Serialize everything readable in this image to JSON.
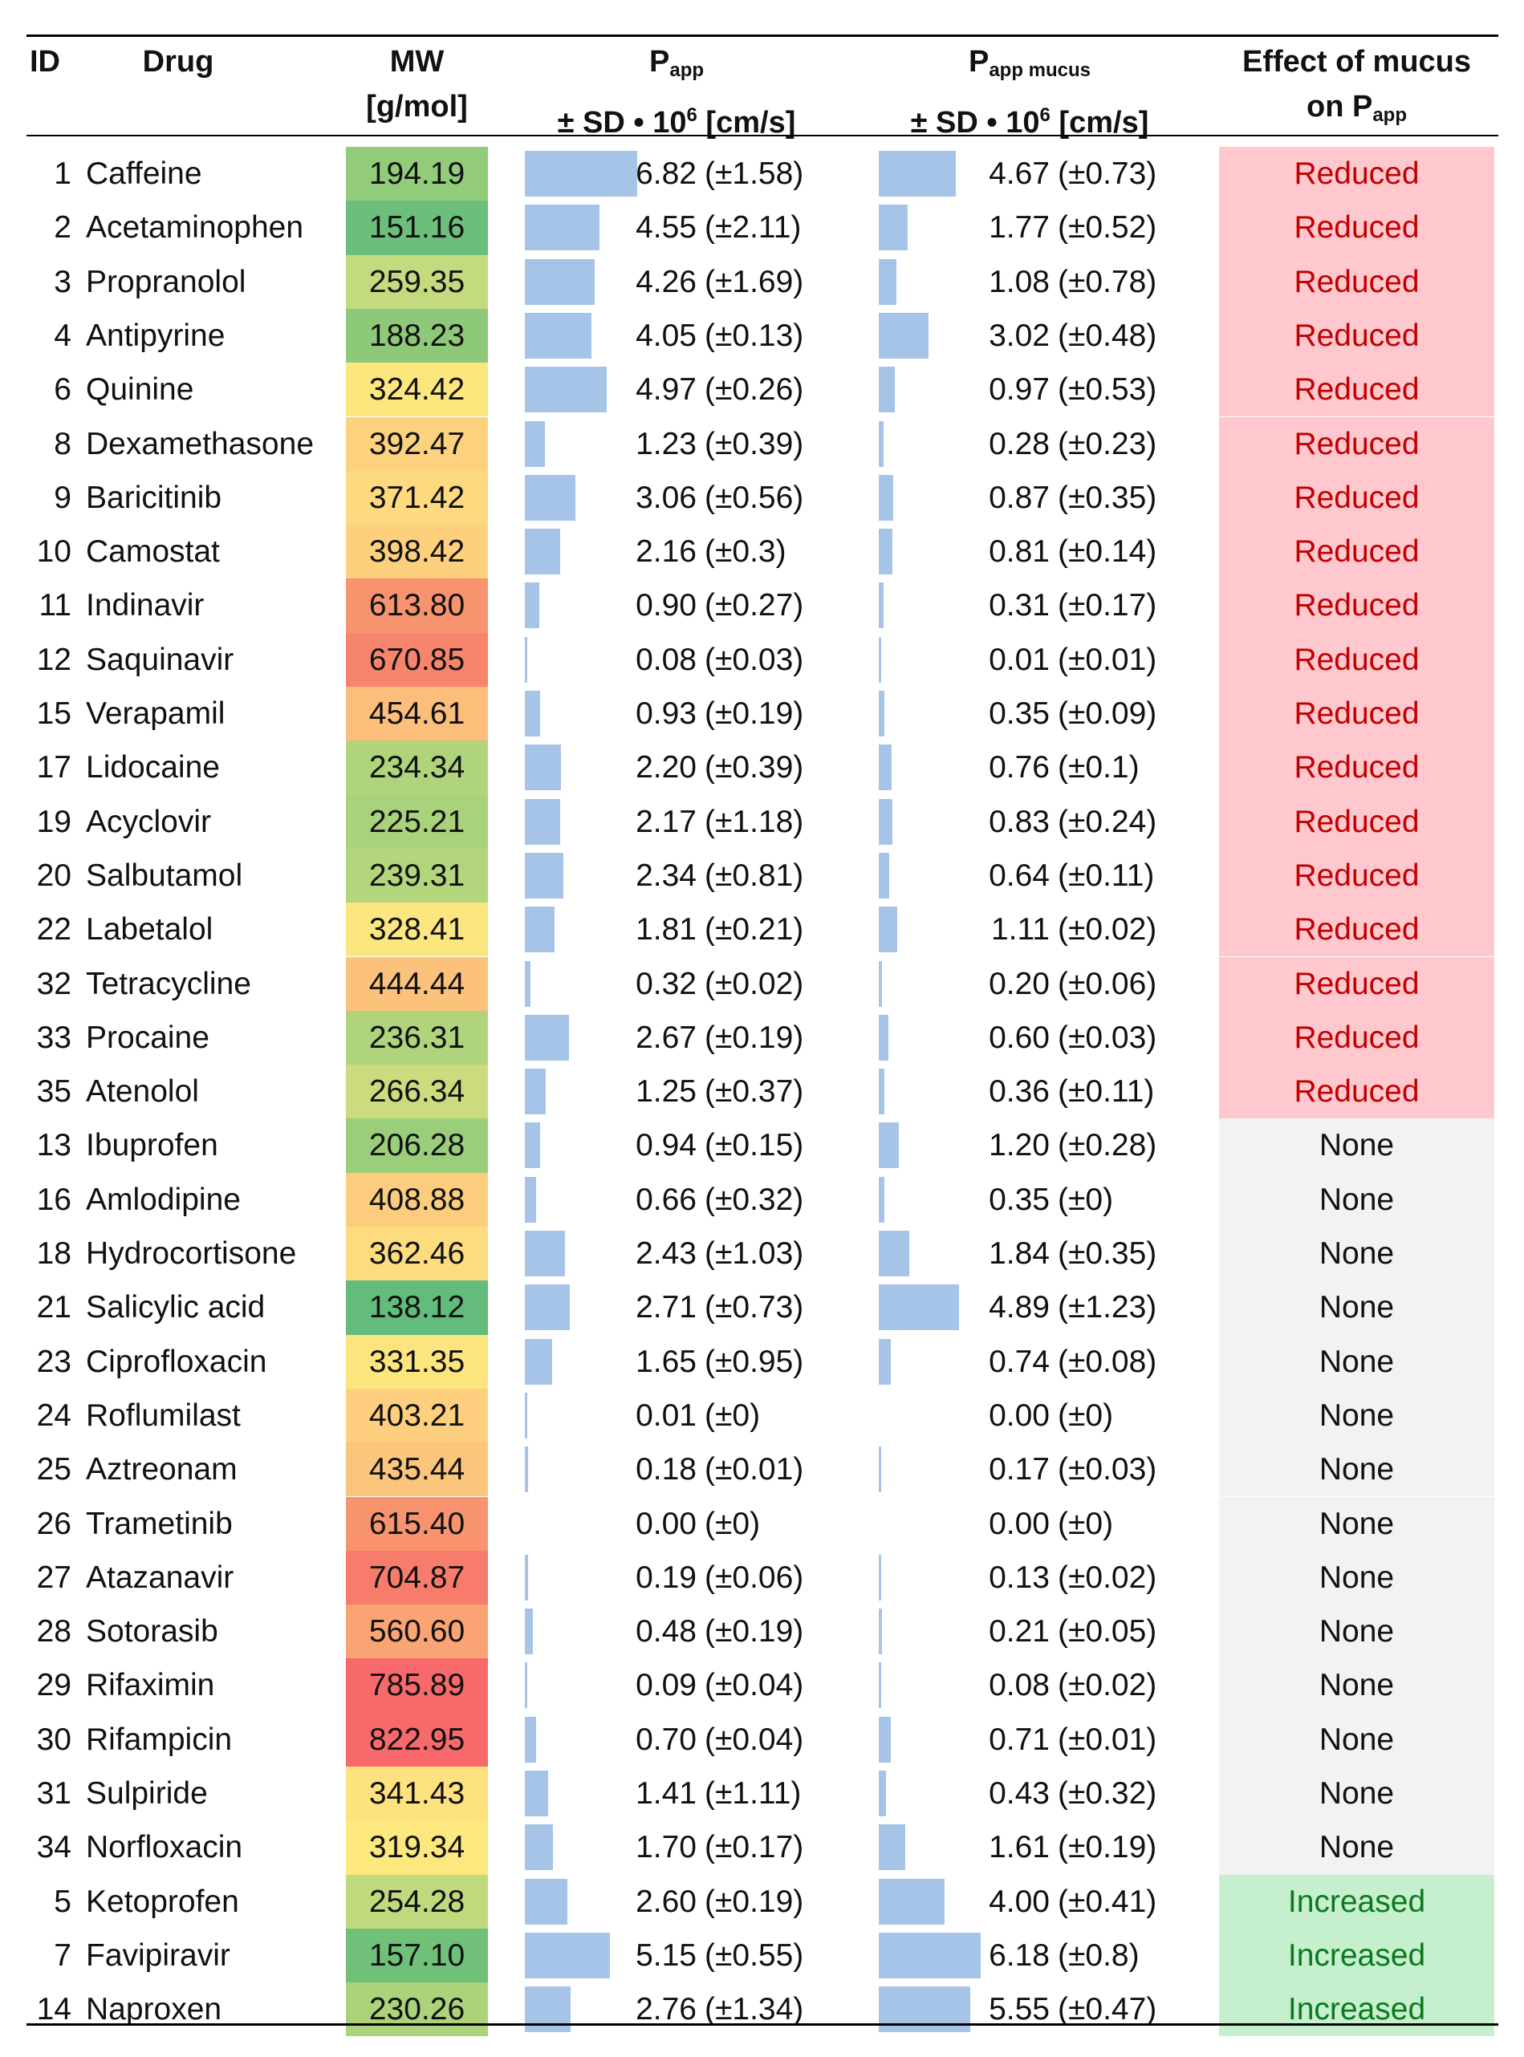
{
  "headers": {
    "id": "ID",
    "drug": "Drug",
    "mw_line1": "MW",
    "mw_line2": "[g/mol]",
    "papp_main": "P",
    "papp_sub": "app",
    "papp_line2_pre": "± SD • 10",
    "papp_sup": "6",
    "papp_line2_post": " [cm/s]",
    "pappm_main": "P",
    "pappm_sub": "app mucus",
    "pappm_line2_pre": "± SD • 10",
    "pappm_sup": "6",
    "pappm_line2_post": " [cm/s]",
    "effect_line1": "Effect of mucus",
    "effect_line2_pre": "on P",
    "effect_sub": "app"
  },
  "colors": {
    "bar": "#a6c4e8",
    "reduced_bg": "#ffc7ce",
    "reduced_text": "#c00000",
    "none_bg": "#f2f2f2",
    "none_text": "#111111",
    "increased_bg": "#c6efce",
    "increased_text": "#0b7a1f"
  },
  "rows": [
    {
      "id": "1",
      "drug": "Caffeine",
      "mw": "194.19",
      "mw_color": "#92cc7a",
      "papp": "6.82",
      "papp_sd": "(±1.58)",
      "papp_v": 6.82,
      "pm": "4.67",
      "pm_sd": "(±0.73)",
      "pm_v": 4.67,
      "effect": "Reduced"
    },
    {
      "id": "2",
      "drug": "Acetaminophen",
      "mw": "151.16",
      "mw_color": "#6cbf7a",
      "papp": "4.55",
      "papp_sd": "(±2.11)",
      "papp_v": 4.55,
      "pm": "1.77",
      "pm_sd": "(±0.52)",
      "pm_v": 1.77,
      "effect": "Reduced"
    },
    {
      "id": "3",
      "drug": "Propranolol",
      "mw": "259.35",
      "mw_color": "#c4da7e",
      "papp": "4.26",
      "papp_sd": "(±1.69)",
      "papp_v": 4.26,
      "pm": "1.08",
      "pm_sd": "(±0.78)",
      "pm_v": 1.08,
      "effect": "Reduced"
    },
    {
      "id": "4",
      "drug": "Antipyrine",
      "mw": "188.23",
      "mw_color": "#8ec97a",
      "papp": "4.05",
      "papp_sd": "(±0.13)",
      "papp_v": 4.05,
      "pm": "3.02",
      "pm_sd": "(±0.48)",
      "pm_v": 3.02,
      "effect": "Reduced"
    },
    {
      "id": "6",
      "drug": "Quinine",
      "mw": "324.42",
      "mw_color": "#fce77f",
      "papp": "4.97",
      "papp_sd": "(±0.26)",
      "papp_v": 4.97,
      "pm": "0.97",
      "pm_sd": "(±0.53)",
      "pm_v": 0.97,
      "effect": "Reduced"
    },
    {
      "id": "8",
      "drug": "Dexamethasone",
      "mw": "392.47",
      "mw_color": "#fdd27e",
      "papp": "1.23",
      "papp_sd": "(±0.39)",
      "papp_v": 1.23,
      "pm": "0.28",
      "pm_sd": "(±0.23)",
      "pm_v": 0.28,
      "effect": "Reduced"
    },
    {
      "id": "9",
      "drug": "Baricitinib",
      "mw": "371.42",
      "mw_color": "#fdd97f",
      "papp": "3.06",
      "papp_sd": "(±0.56)",
      "papp_v": 3.06,
      "pm": "0.87",
      "pm_sd": "(±0.35)",
      "pm_v": 0.87,
      "effect": "Reduced"
    },
    {
      "id": "10",
      "drug": "Camostat",
      "mw": "398.42",
      "mw_color": "#fdd07e",
      "papp": "2.16",
      "papp_sd": "(±0.3)",
      "papp_v": 2.16,
      "pm": "0.81",
      "pm_sd": "(±0.14)",
      "pm_v": 0.81,
      "effect": "Reduced"
    },
    {
      "id": "11",
      "drug": "Indinavir",
      "mw": "613.80",
      "mw_color": "#f8936f",
      "papp": "0.90",
      "papp_sd": "(±0.27)",
      "papp_v": 0.9,
      "pm": "0.31",
      "pm_sd": "(±0.17)",
      "pm_v": 0.31,
      "effect": "Reduced"
    },
    {
      "id": "12",
      "drug": "Saquinavir",
      "mw": "670.85",
      "mw_color": "#f7856d",
      "papp": "0.08",
      "papp_sd": "(±0.03)",
      "papp_v": 0.08,
      "pm": "0.01",
      "pm_sd": "(±0.01)",
      "pm_v": 0.01,
      "effect": "Reduced"
    },
    {
      "id": "15",
      "drug": "Verapamil",
      "mw": "454.61",
      "mw_color": "#fcbf7b",
      "papp": "0.93",
      "papp_sd": "(±0.19)",
      "papp_v": 0.93,
      "pm": "0.35",
      "pm_sd": "(±0.09)",
      "pm_v": 0.35,
      "effect": "Reduced"
    },
    {
      "id": "17",
      "drug": "Lidocaine",
      "mw": "234.34",
      "mw_color": "#afd47c",
      "papp": "2.20",
      "papp_sd": "(±0.39)",
      "papp_v": 2.2,
      "pm": "0.76",
      "pm_sd": "(±0.1)",
      "pm_v": 0.76,
      "effect": "Reduced"
    },
    {
      "id": "19",
      "drug": "Acyclovir",
      "mw": "225.21",
      "mw_color": "#a8d27b",
      "papp": "2.17",
      "papp_sd": "(±1.18)",
      "papp_v": 2.17,
      "pm": "0.83",
      "pm_sd": "(±0.24)",
      "pm_v": 0.83,
      "effect": "Reduced"
    },
    {
      "id": "20",
      "drug": "Salbutamol",
      "mw": "239.31",
      "mw_color": "#b3d57c",
      "papp": "2.34",
      "papp_sd": "(±0.81)",
      "papp_v": 2.34,
      "pm": "0.64",
      "pm_sd": "(±0.11)",
      "pm_v": 0.64,
      "effect": "Reduced"
    },
    {
      "id": "22",
      "drug": "Labetalol",
      "mw": "328.41",
      "mw_color": "#fce67f",
      "papp": "1.81",
      "papp_sd": "(±0.21)",
      "papp_v": 1.81,
      "pm": "1.11",
      "pm_sd": "(±0.02)",
      "pm_v": 1.11,
      "effect": "Reduced"
    },
    {
      "id": "32",
      "drug": "Tetracycline",
      "mw": "444.44",
      "mw_color": "#fcc27c",
      "papp": "0.32",
      "papp_sd": "(±0.02)",
      "papp_v": 0.32,
      "pm": "0.20",
      "pm_sd": "(±0.06)",
      "pm_v": 0.2,
      "effect": "Reduced"
    },
    {
      "id": "33",
      "drug": "Procaine",
      "mw": "236.31",
      "mw_color": "#b0d47c",
      "papp": "2.67",
      "papp_sd": "(±0.19)",
      "papp_v": 2.67,
      "pm": "0.60",
      "pm_sd": "(±0.03)",
      "pm_v": 0.6,
      "effect": "Reduced"
    },
    {
      "id": "35",
      "drug": "Atenolol",
      "mw": "266.34",
      "mw_color": "#cadc7e",
      "papp": "1.25",
      "papp_sd": "(±0.37)",
      "papp_v": 1.25,
      "pm": "0.36",
      "pm_sd": "(±0.11)",
      "pm_v": 0.36,
      "effect": "Reduced"
    },
    {
      "id": "13",
      "drug": "Ibuprofen",
      "mw": "206.28",
      "mw_color": "#9bce7b",
      "papp": "0.94",
      "papp_sd": "(±0.15)",
      "papp_v": 0.94,
      "pm": "1.20",
      "pm_sd": "(±0.28)",
      "pm_v": 1.2,
      "effect": "None"
    },
    {
      "id": "16",
      "drug": "Amlodipine",
      "mw": "408.88",
      "mw_color": "#fdcd7e",
      "papp": "0.66",
      "papp_sd": "(±0.32)",
      "papp_v": 0.66,
      "pm": "0.35",
      "pm_sd": "(±0)",
      "pm_v": 0.35,
      "effect": "None"
    },
    {
      "id": "18",
      "drug": "Hydrocortisone",
      "mw": "362.46",
      "mw_color": "#fddc7f",
      "papp": "2.43",
      "papp_sd": "(±1.03)",
      "papp_v": 2.43,
      "pm": "1.84",
      "pm_sd": "(±0.35)",
      "pm_v": 1.84,
      "effect": "None"
    },
    {
      "id": "21",
      "drug": "Salicylic acid",
      "mw": "138.12",
      "mw_color": "#63bc7b",
      "papp": "2.71",
      "papp_sd": "(±0.73)",
      "papp_v": 2.71,
      "pm": "4.89",
      "pm_sd": "(±1.23)",
      "pm_v": 4.89,
      "effect": "None"
    },
    {
      "id": "23",
      "drug": "Ciprofloxacin",
      "mw": "331.35",
      "mw_color": "#fce57f",
      "papp": "1.65",
      "papp_sd": "(±0.95)",
      "papp_v": 1.65,
      "pm": "0.74",
      "pm_sd": "(±0.08)",
      "pm_v": 0.74,
      "effect": "None"
    },
    {
      "id": "24",
      "drug": "Roflumilast",
      "mw": "403.21",
      "mw_color": "#fdcf7e",
      "papp": "0.01",
      "papp_sd": "(±0)",
      "papp_v": 0.01,
      "pm": "0.00",
      "pm_sd": "(±0)",
      "pm_v": 0.0,
      "effect": "None"
    },
    {
      "id": "25",
      "drug": "Aztreonam",
      "mw": "435.44",
      "mw_color": "#fcc57c",
      "papp": "0.18",
      "papp_sd": "(±0.01)",
      "papp_v": 0.18,
      "pm": "0.17",
      "pm_sd": "(±0.03)",
      "pm_v": 0.17,
      "effect": "None"
    },
    {
      "id": "26",
      "drug": "Trametinib",
      "mw": "615.40",
      "mw_color": "#f8936f",
      "papp": "0.00",
      "papp_sd": "(±0)",
      "papp_v": 0.0,
      "pm": "0.00",
      "pm_sd": "(±0)",
      "pm_v": 0.0,
      "effect": "None"
    },
    {
      "id": "27",
      "drug": "Atazanavir",
      "mw": "704.87",
      "mw_color": "#f77c6c",
      "papp": "0.19",
      "papp_sd": "(±0.06)",
      "papp_v": 0.19,
      "pm": "0.13",
      "pm_sd": "(±0.02)",
      "pm_v": 0.13,
      "effect": "None"
    },
    {
      "id": "28",
      "drug": "Sotorasib",
      "mw": "560.60",
      "mw_color": "#faa473",
      "papp": "0.48",
      "papp_sd": "(±0.19)",
      "papp_v": 0.48,
      "pm": "0.21",
      "pm_sd": "(±0.05)",
      "pm_v": 0.21,
      "effect": "None"
    },
    {
      "id": "29",
      "drug": "Rifaximin",
      "mw": "785.89",
      "mw_color": "#f8696b",
      "papp": "0.09",
      "papp_sd": "(±0.04)",
      "papp_v": 0.09,
      "pm": "0.08",
      "pm_sd": "(±0.02)",
      "pm_v": 0.08,
      "effect": "None"
    },
    {
      "id": "30",
      "drug": "Rifampicin",
      "mw": "822.95",
      "mw_color": "#f8696b",
      "papp": "0.70",
      "papp_sd": "(±0.04)",
      "papp_v": 0.7,
      "pm": "0.71",
      "pm_sd": "(±0.01)",
      "pm_v": 0.71,
      "effect": "None"
    },
    {
      "id": "31",
      "drug": "Sulpiride",
      "mw": "341.43",
      "mw_color": "#fde27f",
      "papp": "1.41",
      "papp_sd": "(±1.11)",
      "papp_v": 1.41,
      "pm": "0.43",
      "pm_sd": "(±0.32)",
      "pm_v": 0.43,
      "effect": "None"
    },
    {
      "id": "34",
      "drug": "Norfloxacin",
      "mw": "319.34",
      "mw_color": "#fce87f",
      "papp": "1.70",
      "papp_sd": "(±0.17)",
      "papp_v": 1.7,
      "pm": "1.61",
      "pm_sd": "(±0.19)",
      "pm_v": 1.61,
      "effect": "None"
    },
    {
      "id": "5",
      "drug": "Ketoprofen",
      "mw": "254.28",
      "mw_color": "#c0d97d",
      "papp": "2.60",
      "papp_sd": "(±0.19)",
      "papp_v": 2.6,
      "pm": "4.00",
      "pm_sd": "(±0.41)",
      "pm_v": 4.0,
      "effect": "Increased"
    },
    {
      "id": "7",
      "drug": "Favipiravir",
      "mw": "157.10",
      "mw_color": "#70c07a",
      "papp": "5.15",
      "papp_sd": "(±0.55)",
      "papp_v": 5.15,
      "pm": "6.18",
      "pm_sd": "(±0.8)",
      "pm_v": 6.18,
      "effect": "Increased"
    },
    {
      "id": "14",
      "drug": "Naproxen",
      "mw": "230.26",
      "mw_color": "#acd37c",
      "papp": "2.76",
      "papp_sd": "(±1.34)",
      "papp_v": 2.76,
      "pm": "5.55",
      "pm_sd": "(±0.47)",
      "pm_v": 5.55,
      "effect": "Increased"
    }
  ]
}
